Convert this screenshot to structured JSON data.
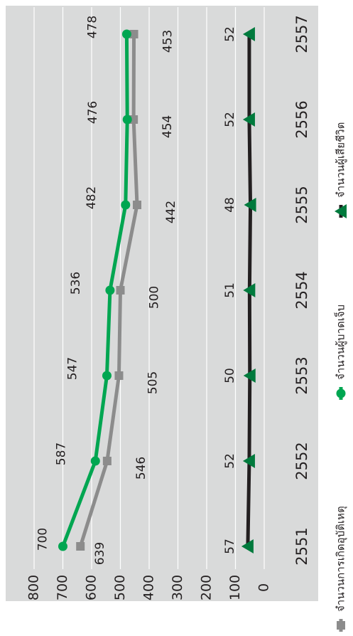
{
  "chart_data": {
    "type": "line",
    "orientation": "rotated-90",
    "categories": [
      "2551",
      "2552",
      "2553",
      "2554",
      "2555",
      "2556",
      "2557"
    ],
    "series": [
      {
        "name": "จำนวนการเกิดอุบัติเหตุ",
        "values": [
          639,
          546,
          505,
          500,
          442,
          454,
          453
        ],
        "color": "#8c8c8c",
        "marker": "square"
      },
      {
        "name": "จำนวนผู้บาดเจ็บ",
        "values": [
          700,
          587,
          547,
          536,
          482,
          476,
          478
        ],
        "color": "#00a651",
        "marker": "circle"
      },
      {
        "name": "จำนวนผู้เสียชีวิต",
        "values": [
          57,
          52,
          50,
          51,
          48,
          52,
          52
        ],
        "color": "#231f20",
        "marker": "triangle"
      }
    ],
    "y_ticks": [
      "0",
      "100",
      "200",
      "300",
      "400",
      "500",
      "600",
      "700",
      "800"
    ],
    "ylim": [
      0,
      800
    ],
    "grid": true,
    "legend_position": "right",
    "plot_background": "#d9dada",
    "outer_background": "#ffffff"
  }
}
